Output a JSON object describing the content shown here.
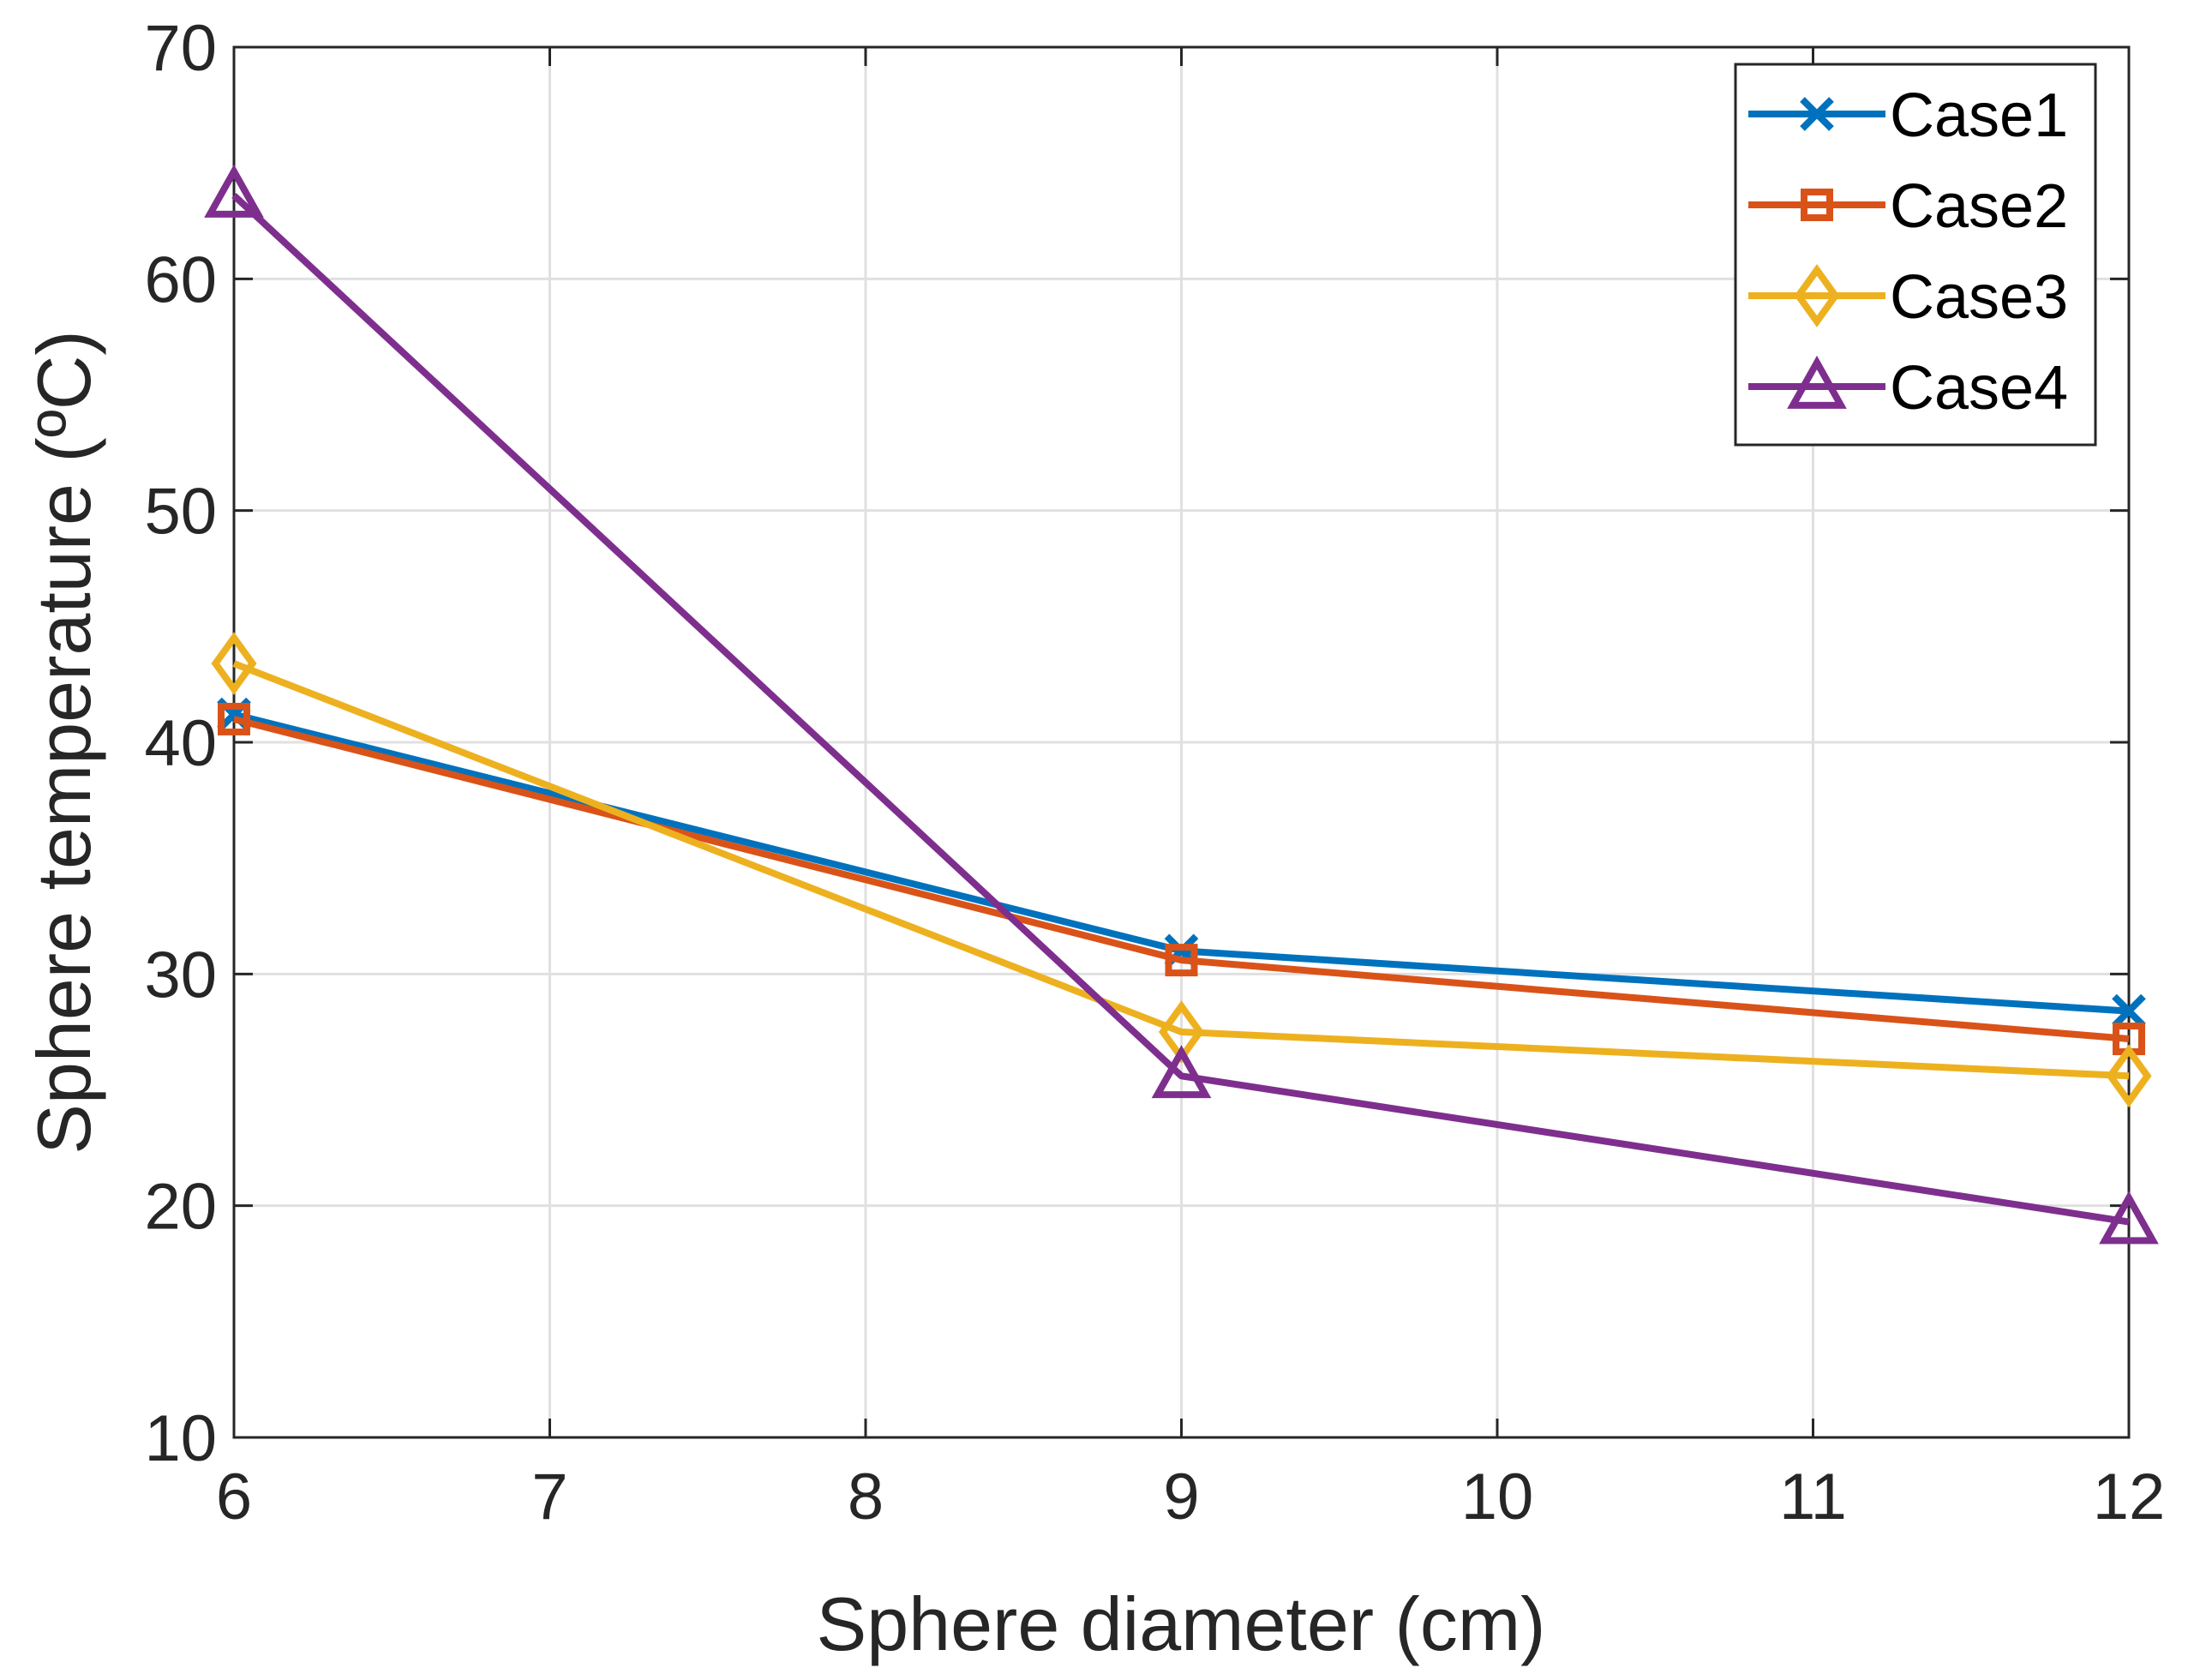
{
  "chart_data": {
    "type": "line",
    "title": "",
    "xlabel": "Sphere diameter (cm)",
    "ylabel": "Sphere temperature (ºC)",
    "xlim": [
      6,
      12
    ],
    "ylim": [
      10,
      70
    ],
    "xticks": [
      6,
      7,
      8,
      9,
      10,
      11,
      12
    ],
    "yticks": [
      10,
      20,
      30,
      40,
      50,
      60,
      70
    ],
    "xtick_labels": [
      "6",
      "7",
      "8",
      "9",
      "10",
      "11",
      "12"
    ],
    "ytick_labels": [
      "10",
      "20",
      "30",
      "40",
      "50",
      "60",
      "70"
    ],
    "grid": true,
    "legend_position": "top-right",
    "x": [
      6,
      9,
      12
    ],
    "series": [
      {
        "name": "Case1",
        "values": [
          41.2,
          31.0,
          28.4
        ],
        "color": "#0072BD",
        "marker": "x"
      },
      {
        "name": "Case2",
        "values": [
          41.0,
          30.6,
          27.2
        ],
        "color": "#D95319",
        "marker": "square"
      },
      {
        "name": "Case3",
        "values": [
          43.4,
          27.5,
          25.6
        ],
        "color": "#EDB120",
        "marker": "diamond"
      },
      {
        "name": "Case4",
        "values": [
          63.6,
          25.6,
          19.3
        ],
        "color": "#7E2F8E",
        "marker": "triangle"
      }
    ]
  }
}
